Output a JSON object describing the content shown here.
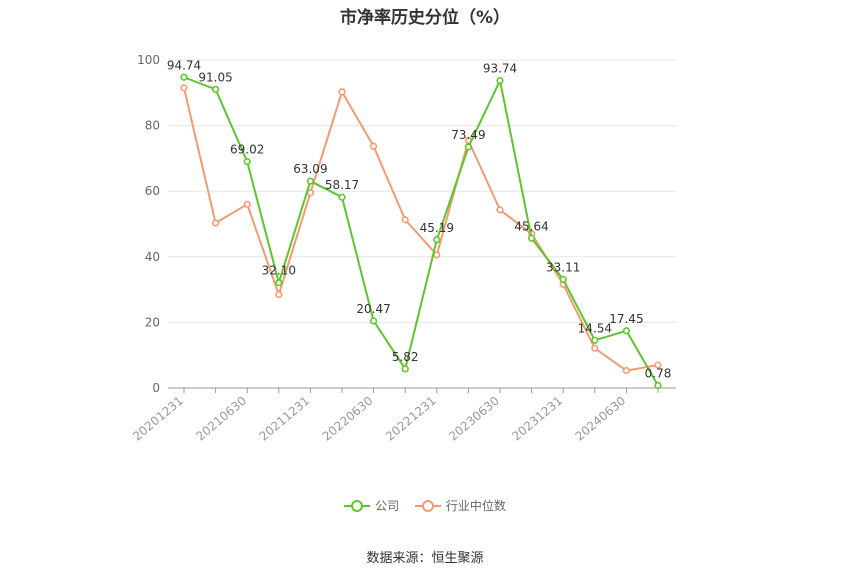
{
  "chart_data": {
    "type": "line",
    "title": "市净率历史分位（%）",
    "categories": [
      "20201231",
      "",
      "20210630",
      "",
      "20211231",
      "",
      "20220630",
      "",
      "20221231",
      "",
      "20230630",
      "",
      "20231231",
      "",
      "20240630",
      ""
    ],
    "series": [
      {
        "name": "公司",
        "color": "#5cc62c",
        "values": [
          94.74,
          91.05,
          69.02,
          32.1,
          63.09,
          58.17,
          20.47,
          5.82,
          45.19,
          73.49,
          93.74,
          45.64,
          33.11,
          14.54,
          17.45,
          0.78
        ],
        "labels": [
          "94.74",
          "91.05",
          "69.02",
          "32.10",
          "63.09",
          "58.17",
          "20.47",
          "5.82",
          "45.19",
          "73.49",
          "93.74",
          "45.64",
          "33.11",
          "14.54",
          "17.45",
          "0.78"
        ]
      },
      {
        "name": "行业中位数",
        "color": "#f49a72",
        "values": [
          91.5,
          50.3,
          56.0,
          28.5,
          59.5,
          90.3,
          73.7,
          51.3,
          40.6,
          75.5,
          54.3,
          47.0,
          31.6,
          12.1,
          5.3,
          7.0
        ]
      }
    ],
    "ylim": [
      0,
      100
    ],
    "yticks": [
      "0",
      "20",
      "40",
      "60",
      "80",
      "100"
    ],
    "grid": true,
    "legend": "bottom"
  },
  "source": "数据来源：恒生聚源"
}
